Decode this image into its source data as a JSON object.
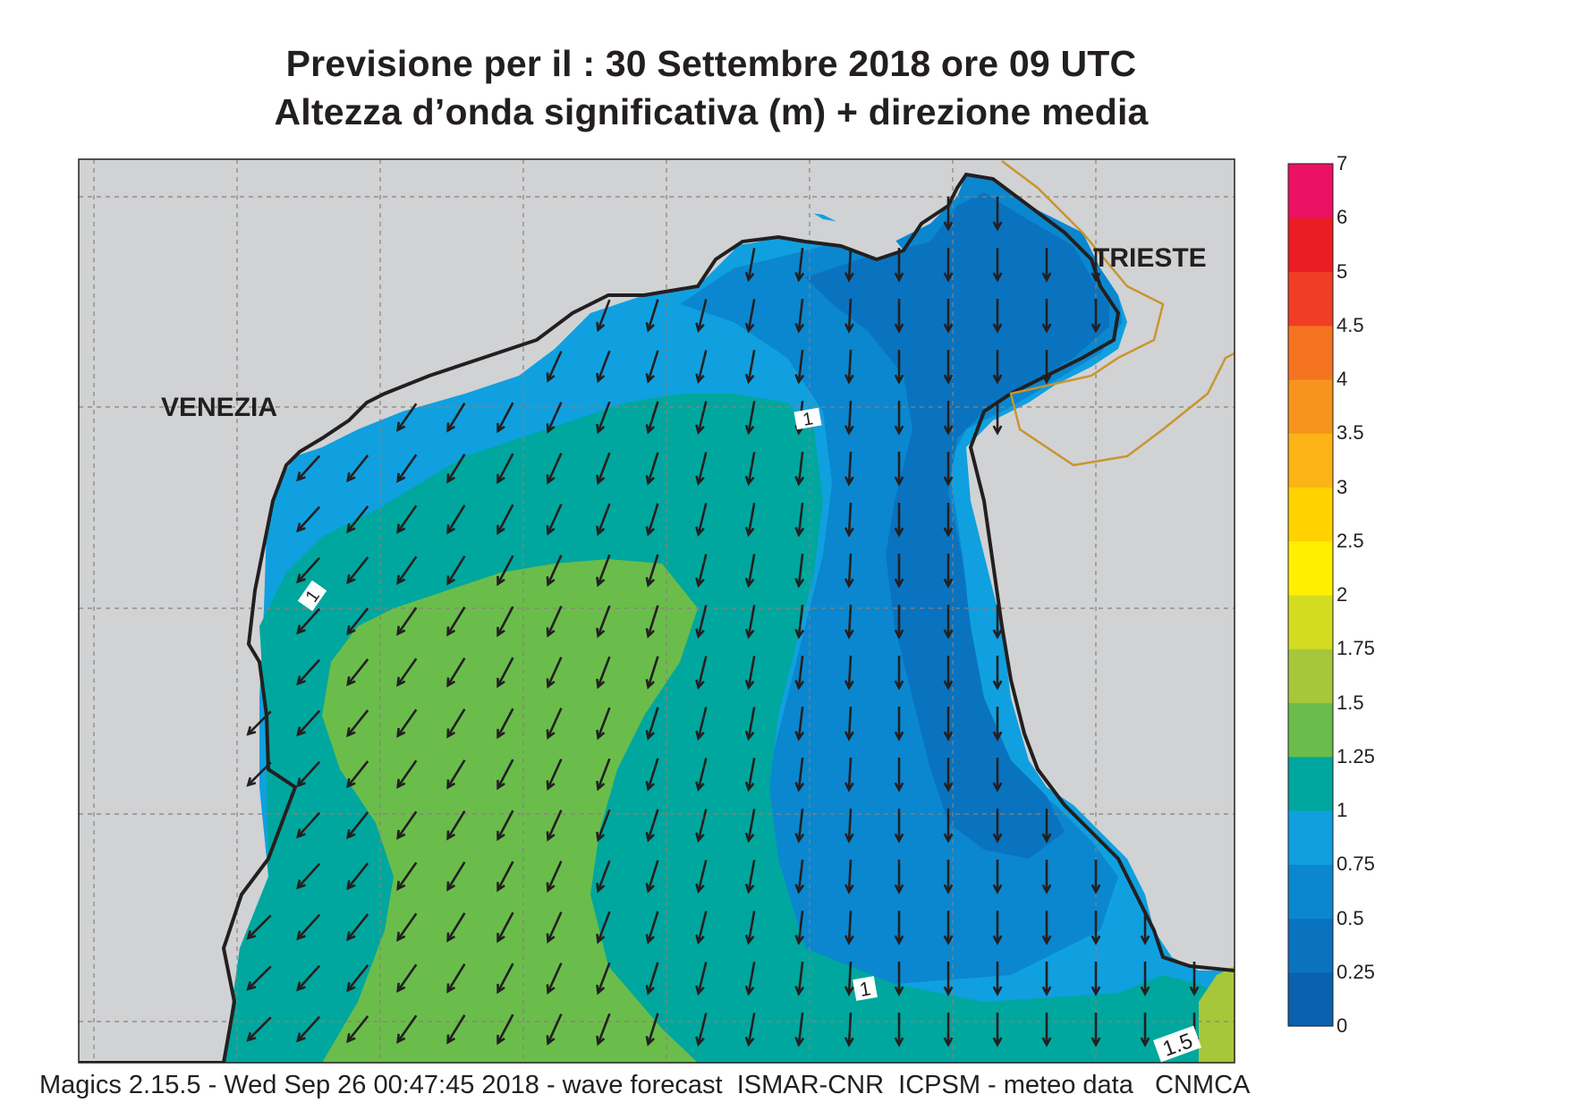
{
  "title_line1": "Previsione per il  :  30 Settembre 2018   ore 09 UTC",
  "title_line2": "Altezza d’onda significativa (m) + direzione media",
  "footer": "Magics 2.15.5 - Wed Sep 26 00:47:45 2018 - wave forecast  ISMAR-CNR  ICPSM - meteo data   CNMCA",
  "cities": [
    {
      "name": "VENEZIA"
    },
    {
      "name": "TRIESTE"
    }
  ],
  "colorbar": {
    "levels": [
      "0",
      "0.25",
      "0.5",
      "0.75",
      "1",
      "1.25",
      "1.5",
      "1.75",
      "2",
      "2.5",
      "3",
      "3.5",
      "4",
      "4.5",
      "5",
      "6",
      "7"
    ],
    "colors": [
      "#0a62ae",
      "#0a73bf",
      "#0b87cf",
      "#10a0e0",
      "#00a79e",
      "#6abd4b",
      "#a6c73a",
      "#d4dc22",
      "#fff000",
      "#ffd200",
      "#fcb316",
      "#f7941d",
      "#f47320",
      "#ef3e23",
      "#ec1c24",
      "#ec1164"
    ]
  },
  "contour_labels": [
    "1",
    "1",
    "1",
    "1.5"
  ],
  "colors": {
    "land": "#d1d2d4",
    "coastline": "#231f20",
    "border": "#c8952e",
    "arrow": "#231f20"
  }
}
